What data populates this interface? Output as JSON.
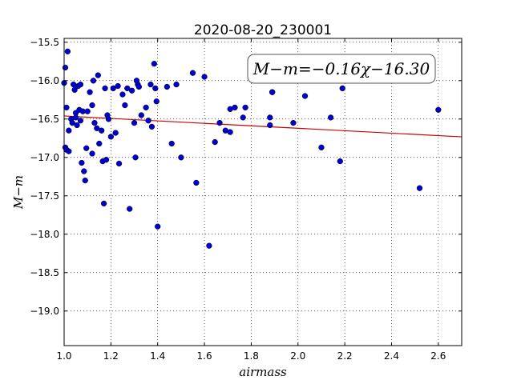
{
  "chart_data": {
    "type": "scatter",
    "title": "2020-08-20_230001",
    "xlabel": "airmass",
    "ylabel": "M−m",
    "xlim": [
      1.0,
      2.7
    ],
    "ylim": [
      -15.45,
      -19.45
    ],
    "y_inverted": true,
    "xticks": [
      "1.0",
      "1.2",
      "1.4",
      "1.6",
      "1.8",
      "2.0",
      "2.2",
      "2.4",
      "2.6"
    ],
    "xtick_values": [
      1.0,
      1.2,
      1.4,
      1.6,
      1.8,
      2.0,
      2.2,
      2.4,
      2.6
    ],
    "yticks": [
      "−15.5",
      "−16.0",
      "−16.5",
      "−17.0",
      "−17.5",
      "−18.0",
      "−18.5",
      "−19.0"
    ],
    "ytick_values": [
      -15.5,
      -16.0,
      -16.5,
      -17.0,
      -17.5,
      -18.0,
      -18.5,
      -19.0
    ],
    "grid": true,
    "annotation": "M−m=−0.16χ−16.30",
    "marker_color": "#0000cc",
    "fit_color": "#cc0000",
    "fit": {
      "slope": -0.16,
      "intercept": -16.3
    },
    "series": [
      {
        "points": [
          [
            1.0,
            -16.03
          ],
          [
            1.005,
            -15.83
          ],
          [
            1.01,
            -16.35
          ],
          [
            1.015,
            -15.62
          ],
          [
            1.02,
            -16.65
          ],
          [
            1.005,
            -16.87
          ],
          [
            1.01,
            -16.9
          ],
          [
            1.02,
            -16.92
          ],
          [
            1.03,
            -16.5
          ],
          [
            1.035,
            -16.55
          ],
          [
            1.04,
            -16.05
          ],
          [
            1.045,
            -16.12
          ],
          [
            1.05,
            -16.42
          ],
          [
            1.05,
            -16.48
          ],
          [
            1.055,
            -16.58
          ],
          [
            1.06,
            -16.07
          ],
          [
            1.065,
            -16.38
          ],
          [
            1.07,
            -16.52
          ],
          [
            1.07,
            -16.05
          ],
          [
            1.075,
            -17.07
          ],
          [
            1.08,
            -16.4
          ],
          [
            1.085,
            -17.18
          ],
          [
            1.09,
            -17.3
          ],
          [
            1.095,
            -16.88
          ],
          [
            1.1,
            -16.4
          ],
          [
            1.11,
            -16.15
          ],
          [
            1.12,
            -16.95
          ],
          [
            1.12,
            -16.32
          ],
          [
            1.125,
            -16.0
          ],
          [
            1.13,
            -16.55
          ],
          [
            1.14,
            -16.62
          ],
          [
            1.145,
            -15.93
          ],
          [
            1.15,
            -16.82
          ],
          [
            1.16,
            -16.65
          ],
          [
            1.165,
            -17.05
          ],
          [
            1.17,
            -17.6
          ],
          [
            1.175,
            -16.1
          ],
          [
            1.18,
            -17.03
          ],
          [
            1.185,
            -16.45
          ],
          [
            1.19,
            -16.5
          ],
          [
            1.2,
            -16.73
          ],
          [
            1.21,
            -16.1
          ],
          [
            1.22,
            -16.68
          ],
          [
            1.23,
            -16.07
          ],
          [
            1.235,
            -17.08
          ],
          [
            1.25,
            -16.18
          ],
          [
            1.26,
            -16.32
          ],
          [
            1.27,
            -16.1
          ],
          [
            1.28,
            -17.67
          ],
          [
            1.29,
            -16.13
          ],
          [
            1.3,
            -16.55
          ],
          [
            1.305,
            -17.0
          ],
          [
            1.31,
            -16.0
          ],
          [
            1.315,
            -16.05
          ],
          [
            1.32,
            -16.08
          ],
          [
            1.33,
            -16.45
          ],
          [
            1.35,
            -16.35
          ],
          [
            1.36,
            -16.52
          ],
          [
            1.37,
            -16.05
          ],
          [
            1.375,
            -16.6
          ],
          [
            1.385,
            -15.78
          ],
          [
            1.39,
            -16.1
          ],
          [
            1.395,
            -16.27
          ],
          [
            1.4,
            -17.9
          ],
          [
            1.44,
            -16.08
          ],
          [
            1.46,
            -16.82
          ],
          [
            1.48,
            -16.05
          ],
          [
            1.5,
            -17.0
          ],
          [
            1.55,
            -15.9
          ],
          [
            1.565,
            -17.33
          ],
          [
            1.6,
            -15.95
          ],
          [
            1.62,
            -18.15
          ],
          [
            1.645,
            -16.8
          ],
          [
            1.665,
            -16.55
          ],
          [
            1.69,
            -16.65
          ],
          [
            1.71,
            -16.37
          ],
          [
            1.71,
            -16.67
          ],
          [
            1.73,
            -16.35
          ],
          [
            1.765,
            -16.48
          ],
          [
            1.775,
            -16.35
          ],
          [
            1.88,
            -16.48
          ],
          [
            1.88,
            -16.58
          ],
          [
            1.89,
            -16.15
          ],
          [
            1.89,
            -16.15
          ],
          [
            1.98,
            -16.55
          ],
          [
            2.03,
            -16.2
          ],
          [
            2.1,
            -16.87
          ],
          [
            2.14,
            -16.48
          ],
          [
            2.18,
            -17.05
          ],
          [
            2.19,
            -16.1
          ],
          [
            2.52,
            -17.4
          ],
          [
            2.6,
            -16.38
          ]
        ]
      }
    ]
  }
}
